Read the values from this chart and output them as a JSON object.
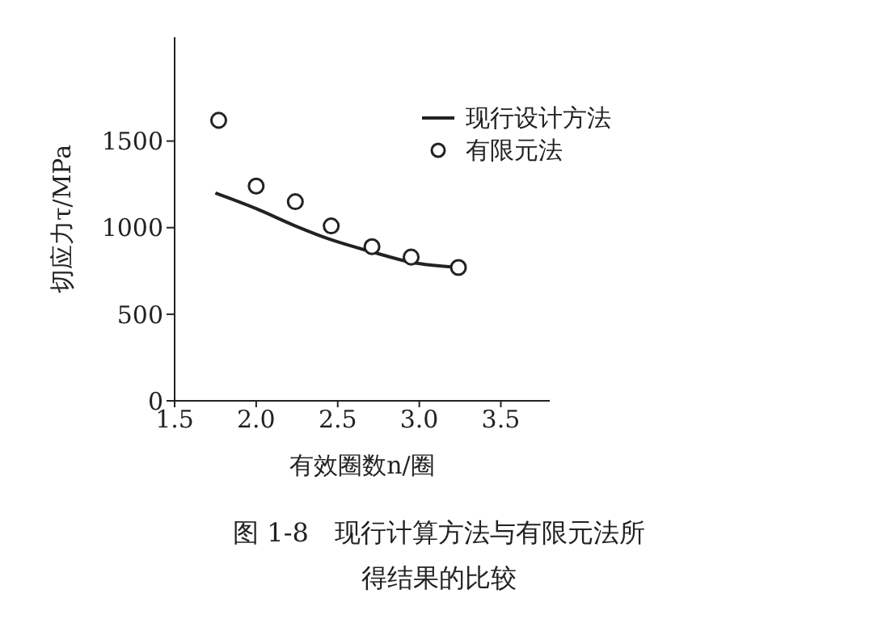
{
  "chart_data": {
    "type": "line",
    "xlabel": "有效圈数n/圈",
    "ylabel": "切应力τ/MPa",
    "xlim": [
      1.5,
      3.8
    ],
    "xticks": [
      {
        "value": 1.5,
        "label": "1.5"
      },
      {
        "value": 2,
        "label": "2.0"
      },
      {
        "value": 2.5,
        "label": "2.5"
      },
      {
        "value": 3,
        "label": "3.0"
      },
      {
        "value": 3.5,
        "label": "3.5"
      }
    ],
    "ylim": [
      0,
      2100
    ],
    "yticks": [
      0,
      500,
      1000,
      1500
    ],
    "grid": false,
    "legend": "top right",
    "annotations": [
      "图 1-8　现行计算方法与有限元法所得结果的比较"
    ],
    "series": [
      {
        "name": "现行设计方法",
        "color": "#222222",
        "marker": "none",
        "x": [
          1.75,
          2.0,
          2.24,
          2.46,
          2.71,
          2.95,
          3.24
        ],
        "values": [
          1200,
          1110,
          1010,
          930,
          860,
          800,
          770
        ]
      },
      {
        "name": "有限元法",
        "type": "scatter",
        "color": "#222222",
        "marker": "circle",
        "x": [
          1.77,
          2.0,
          2.24,
          2.46,
          2.71,
          2.95,
          3.24
        ],
        "values": [
          1620,
          1240,
          1150,
          1010,
          890,
          830,
          770
        ]
      }
    ]
  }
}
